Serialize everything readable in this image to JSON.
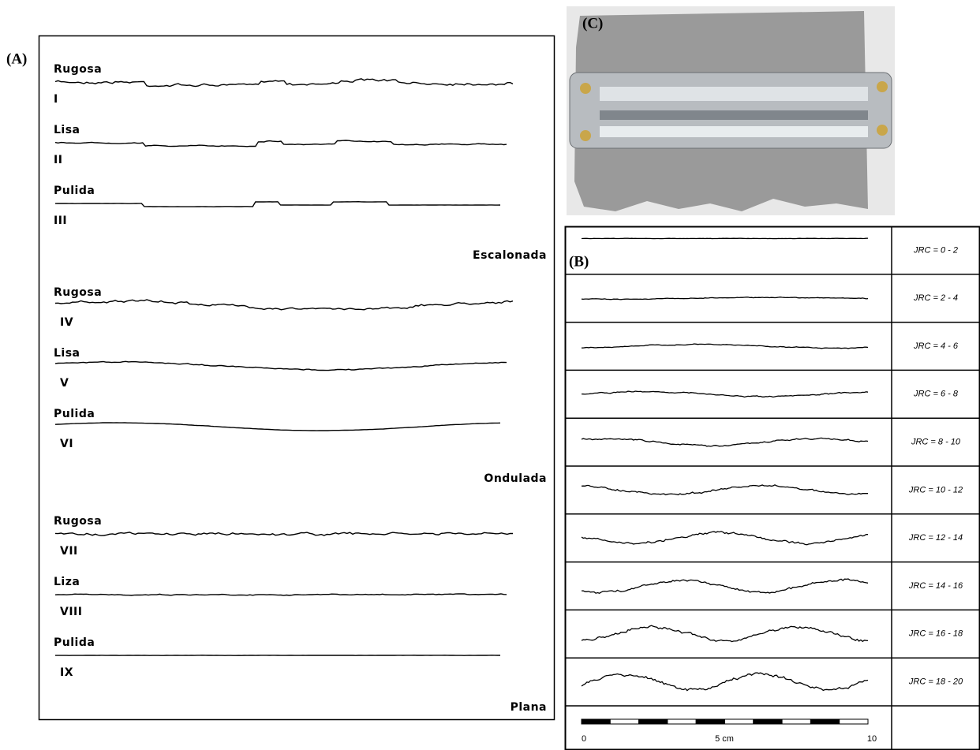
{
  "panel_a": {
    "label": "(A)",
    "groups": [
      {
        "type": "Escalonada",
        "profiles": [
          {
            "name": "Rugosa",
            "numeral": "I"
          },
          {
            "name": "Lisa",
            "numeral": "II"
          },
          {
            "name": "Pulida",
            "numeral": "III"
          }
        ]
      },
      {
        "type": "Ondulada",
        "profiles": [
          {
            "name": "Rugosa",
            "numeral": "IV"
          },
          {
            "name": "Lisa",
            "numeral": "V"
          },
          {
            "name": "Pulida",
            "numeral": "VI"
          }
        ]
      },
      {
        "type": "Plana",
        "profiles": [
          {
            "name": "Rugosa",
            "numeral": "VII"
          },
          {
            "name": "Liza",
            "numeral": "VIII"
          },
          {
            "name": "Pulida",
            "numeral": "IX"
          }
        ]
      }
    ]
  },
  "panel_b": {
    "label": "(B)",
    "rows": [
      "JRC = 0 - 2",
      "JRC = 2 - 4",
      "JRC = 4 - 6",
      "JRC = 6 - 8",
      "JRC = 8 - 10",
      "JRC = 10 - 12",
      "JRC = 12 - 14",
      "JRC = 14 - 16",
      "JRC = 16 - 18",
      "JRC = 18 - 20"
    ],
    "scale": [
      "0",
      "5 cm",
      "10"
    ]
  },
  "panel_c": {
    "label": "(C)"
  }
}
